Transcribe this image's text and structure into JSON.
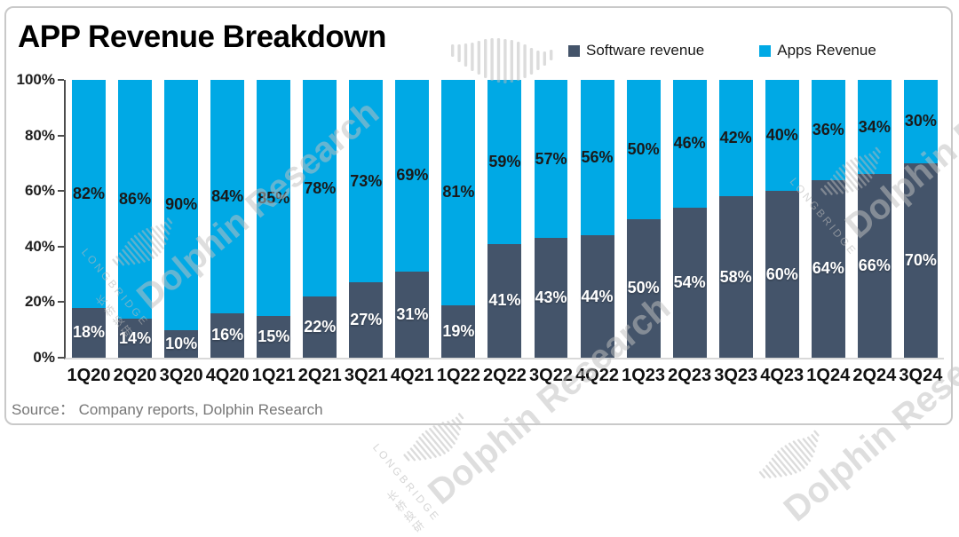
{
  "header": {
    "title": "APP Revenue Breakdown"
  },
  "legend": {
    "items": [
      {
        "label": "Software revenue",
        "color": "#44546A"
      },
      {
        "label": "Apps Revenue",
        "color": "#00A9E5"
      }
    ]
  },
  "source": {
    "text": "Source：  Company reports, Dolphin Research"
  },
  "watermark": {
    "text": "Dolphin Research",
    "brand": "LONGBRIDGE",
    "brand_cn": "长桥投研"
  },
  "colors": {
    "software": "#44546A",
    "apps": "#00A9E5",
    "axis": "#4d4d4d",
    "baseline": "#d9d9d9",
    "frame_border": "#c9c9c9",
    "source_text": "#767676"
  },
  "chart_data": {
    "type": "bar",
    "stacked": true,
    "percent_stacked": true,
    "title": "APP Revenue Breakdown",
    "categories": [
      "1Q20",
      "2Q20",
      "3Q20",
      "4Q20",
      "1Q21",
      "2Q21",
      "3Q21",
      "4Q21",
      "1Q22",
      "2Q22",
      "3Q22",
      "4Q22",
      "1Q23",
      "2Q23",
      "3Q23",
      "4Q23",
      "1Q24",
      "2Q24",
      "3Q24"
    ],
    "series": [
      {
        "name": "Software revenue",
        "color": "#44546A",
        "label_color": "#FFFFFF",
        "values": [
          18,
          14,
          10,
          16,
          15,
          22,
          27,
          31,
          19,
          41,
          43,
          44,
          50,
          54,
          58,
          60,
          64,
          66,
          70
        ]
      },
      {
        "name": "Apps Revenue",
        "color": "#00A9E5",
        "label_color": "#1A1A1A",
        "values": [
          82,
          86,
          90,
          84,
          85,
          78,
          73,
          69,
          81,
          59,
          57,
          56,
          50,
          46,
          42,
          40,
          36,
          34,
          30
        ]
      }
    ],
    "xlabel": "",
    "ylabel": "",
    "ylim": [
      0,
      100
    ],
    "yticks": [
      {
        "label": "100%",
        "value": 100
      },
      {
        "label": "80%",
        "value": 80
      },
      {
        "label": "60%",
        "value": 60
      },
      {
        "label": "40%",
        "value": 40
      },
      {
        "label": "20%",
        "value": 20
      },
      {
        "label": "0%",
        "value": 0
      }
    ],
    "grid": false,
    "legend_position": "top-right",
    "data_label_format": "{value}%"
  }
}
